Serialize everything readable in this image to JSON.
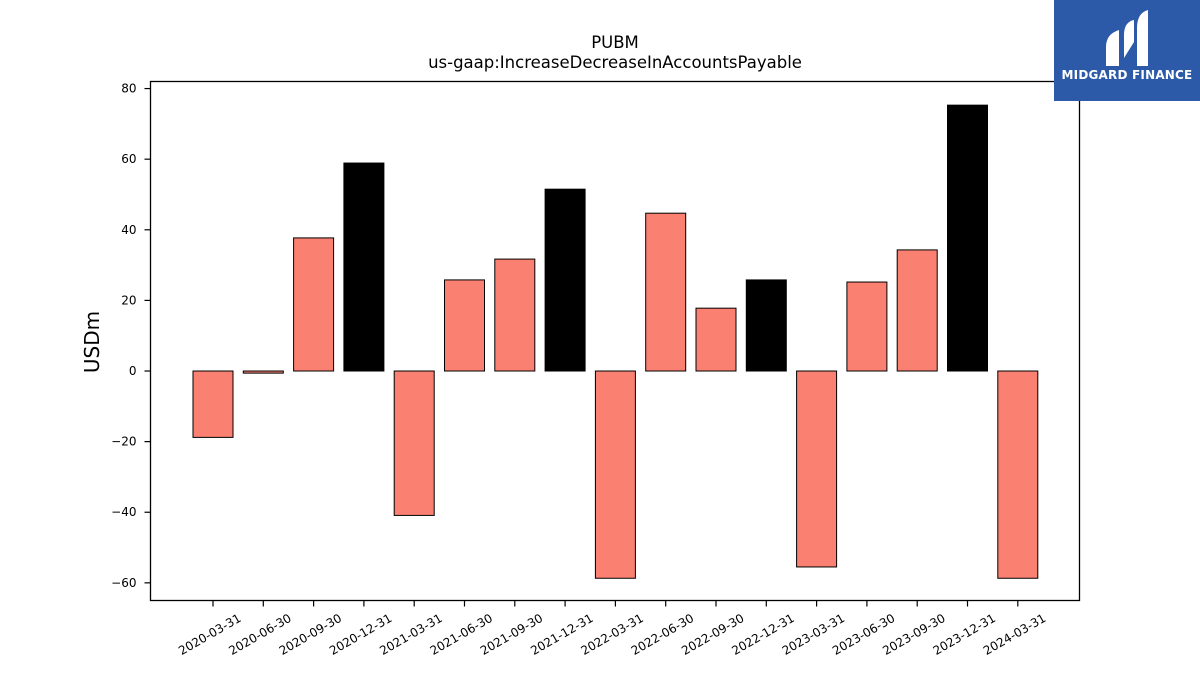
{
  "brand": {
    "name": "MIDGARD FINANCE",
    "bg_color": "#2c5aa8"
  },
  "chart_data": {
    "type": "bar",
    "title": "PUBM",
    "subtitle": "us-gaap:IncreaseDecreaseInAccountsPayable",
    "xlabel": "",
    "ylabel": "USDm",
    "ylim": [
      -65,
      82
    ],
    "yticks": [
      80,
      60,
      40,
      20,
      0,
      -20,
      -40,
      -60
    ],
    "ytick_labels": [
      "80",
      "60",
      "40",
      "20",
      "0",
      "−20",
      "−40",
      "−60"
    ],
    "grid": false,
    "categories": [
      "2020-03-31",
      "2020-06-30",
      "2020-09-30",
      "2020-12-31",
      "2021-03-31",
      "2021-06-30",
      "2021-09-30",
      "2021-12-31",
      "2022-03-31",
      "2022-06-30",
      "2022-09-30",
      "2022-12-31",
      "2023-03-31",
      "2023-06-30",
      "2023-09-30",
      "2023-12-31",
      "2024-03-31"
    ],
    "values": [
      -18.8,
      -0.6,
      37.7,
      58.9,
      -40.9,
      25.8,
      31.7,
      51.5,
      -58.7,
      44.7,
      17.8,
      25.8,
      -55.5,
      25.2,
      34.3,
      75.3,
      -58.7
    ],
    "colors": {
      "quarter": "#fa8072",
      "year_end": "#000000"
    }
  }
}
